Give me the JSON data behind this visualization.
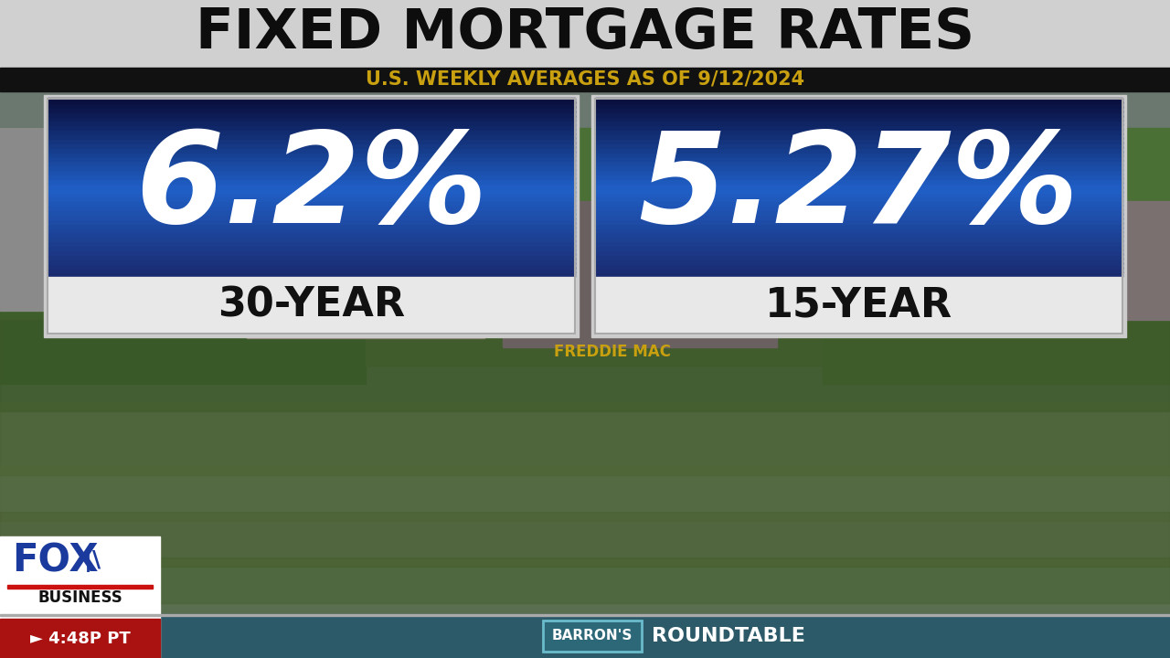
{
  "title": "FIXED MORTGAGE RATES",
  "subtitle": "U.S. WEEKLY AVERAGES AS OF 9/12/2024",
  "rate_30yr": "6.2%",
  "rate_15yr": "5.27%",
  "label_30yr": "30-YEAR",
  "label_15yr": "15-YEAR",
  "source_label": "FREDDIE MAC",
  "barrons_text": "BARRON'S",
  "roundtable_text": "ROUNDTABLE",
  "time_text": "► 4:48P PT",
  "title_bg": "#d2d2d2",
  "subtitle_bg": "#111111",
  "subtitle_color": "#c8a010",
  "box_label_bg": "#e0e0e0",
  "rate_color": "#ffffff",
  "label_color": "#111111",
  "ticker_bg": "#2d5a68",
  "ticker_border": "#4a8a9a",
  "time_bg": "#aa1111",
  "source_color": "#c8a010",
  "fox_color": "#1a3a9e",
  "figsize": [
    12.8,
    7.2
  ],
  "dpi": 100
}
